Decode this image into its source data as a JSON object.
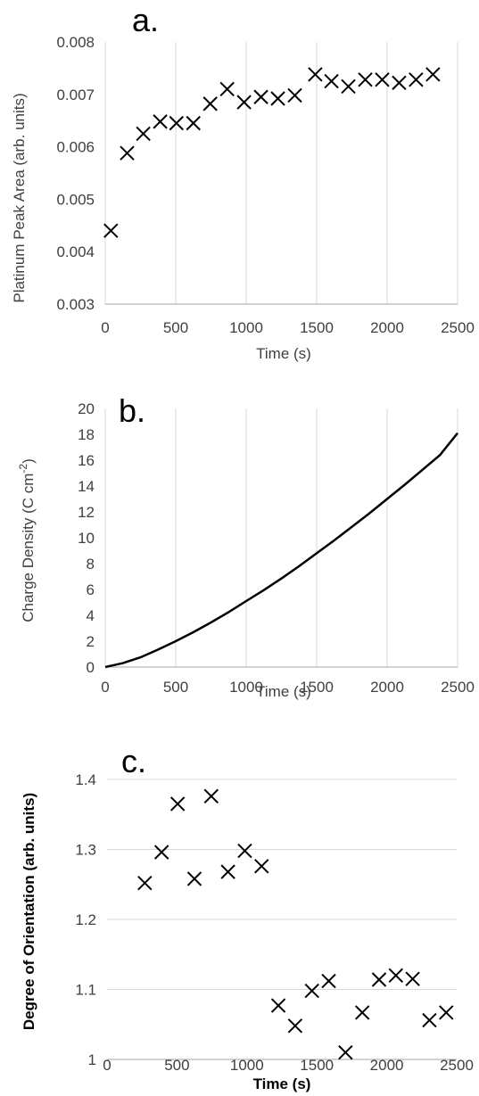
{
  "chart_data": [
    {
      "type": "scatter",
      "label": "a.",
      "xlabel": "Time (s)",
      "ylabel": "Platinum Peak Area (arb. units)",
      "xlim": [
        0,
        2500
      ],
      "ylim": [
        0.003,
        0.008
      ],
      "xticks": [
        "0",
        "500",
        "1000",
        "1500",
        "2000",
        "2500"
      ],
      "yticks": [
        "0.003",
        "0.004",
        "0.005",
        "0.006",
        "0.007",
        "0.008"
      ],
      "grid": "vertical",
      "x": [
        40,
        155,
        270,
        390,
        505,
        625,
        745,
        865,
        985,
        1105,
        1225,
        1345,
        1490,
        1605,
        1725,
        1845,
        1965,
        2085,
        2205,
        2325
      ],
      "y": [
        0.0044,
        0.00588,
        0.00625,
        0.00648,
        0.00645,
        0.00645,
        0.00682,
        0.0071,
        0.00685,
        0.00695,
        0.00692,
        0.00698,
        0.00738,
        0.00725,
        0.00715,
        0.00728,
        0.00728,
        0.00722,
        0.00728,
        0.00738
      ]
    },
    {
      "type": "line",
      "label": "b.",
      "xlabel": "Time (s)",
      "ylabel": "Charge Density (C cm",
      "ylabel_sup": "-2",
      "ylabel_end": ")",
      "xlim": [
        0,
        2500
      ],
      "ylim": [
        0,
        20
      ],
      "xticks": [
        "0",
        "500",
        "1000",
        "1500",
        "2000",
        "2500"
      ],
      "yticks": [
        "0",
        "2",
        "4",
        "6",
        "8",
        "10",
        "12",
        "14",
        "16",
        "18",
        "20"
      ],
      "grid": "vertical",
      "x": [
        0,
        125,
        250,
        375,
        500,
        625,
        750,
        875,
        1000,
        1125,
        1250,
        1375,
        1500,
        1625,
        1750,
        1875,
        2000,
        2125,
        2250,
        2375,
        2500
      ],
      "y": [
        0,
        0.3,
        0.75,
        1.35,
        2.0,
        2.7,
        3.45,
        4.25,
        5.1,
        5.95,
        6.85,
        7.8,
        8.8,
        9.8,
        10.85,
        11.9,
        13.0,
        14.1,
        15.25,
        16.4,
        18.1
      ]
    },
    {
      "type": "scatter",
      "label": "c.",
      "xlabel": "Time (s)",
      "ylabel": "Degree of Orientation (arb. units)",
      "xlim": [
        0,
        2500
      ],
      "ylim": [
        1,
        1.4
      ],
      "xticks": [
        "0",
        "500",
        "1000",
        "1500",
        "2000",
        "2500"
      ],
      "yticks": [
        "1",
        "1.1",
        "1.2",
        "1.3",
        "1.4"
      ],
      "grid": "horizontal",
      "x": [
        270,
        390,
        505,
        625,
        745,
        865,
        985,
        1105,
        1225,
        1345,
        1465,
        1585,
        1705,
        1825,
        1945,
        2065,
        2185,
        2305,
        2425
      ],
      "y": [
        1.252,
        1.296,
        1.365,
        1.258,
        1.376,
        1.268,
        1.298,
        1.276,
        1.077,
        1.048,
        1.098,
        1.112,
        1.01,
        1.067,
        1.114,
        1.12,
        1.115,
        1.056,
        1.067
      ]
    }
  ]
}
